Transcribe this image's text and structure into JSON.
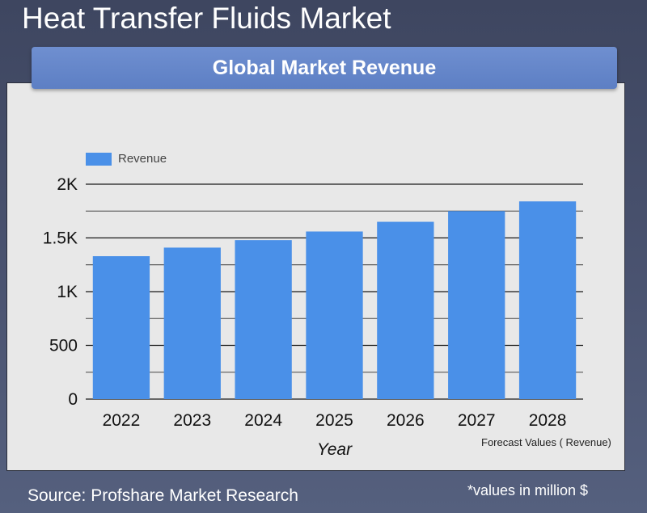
{
  "page": {
    "title": "Heat Transfer Fluids Market",
    "banner_title": "Global Market Revenue",
    "source": "Source: Profshare Market Research",
    "units_note": "*values in million $",
    "forecast_note": "Forecast Values ( Revenue)"
  },
  "colors": {
    "bar": "#4a90e8",
    "banner": "#6384c8",
    "panel": "#e8e8e8",
    "background": "#444c66"
  },
  "chart_data": {
    "type": "bar",
    "categories": [
      "2022",
      "2023",
      "2024",
      "2025",
      "2026",
      "2027",
      "2028"
    ],
    "series": [
      {
        "name": "Revenue",
        "values": [
          1330,
          1410,
          1480,
          1560,
          1650,
          1750,
          1840
        ]
      }
    ],
    "xlabel": "Year",
    "ylabel": "",
    "ylim": [
      0,
      2000
    ],
    "yticks": [
      0,
      500,
      1000,
      1500,
      2000
    ],
    "ytick_labels": [
      "0",
      "500",
      "1K",
      "1.5K",
      "2K"
    ],
    "grid": true,
    "legend": "top-left"
  }
}
